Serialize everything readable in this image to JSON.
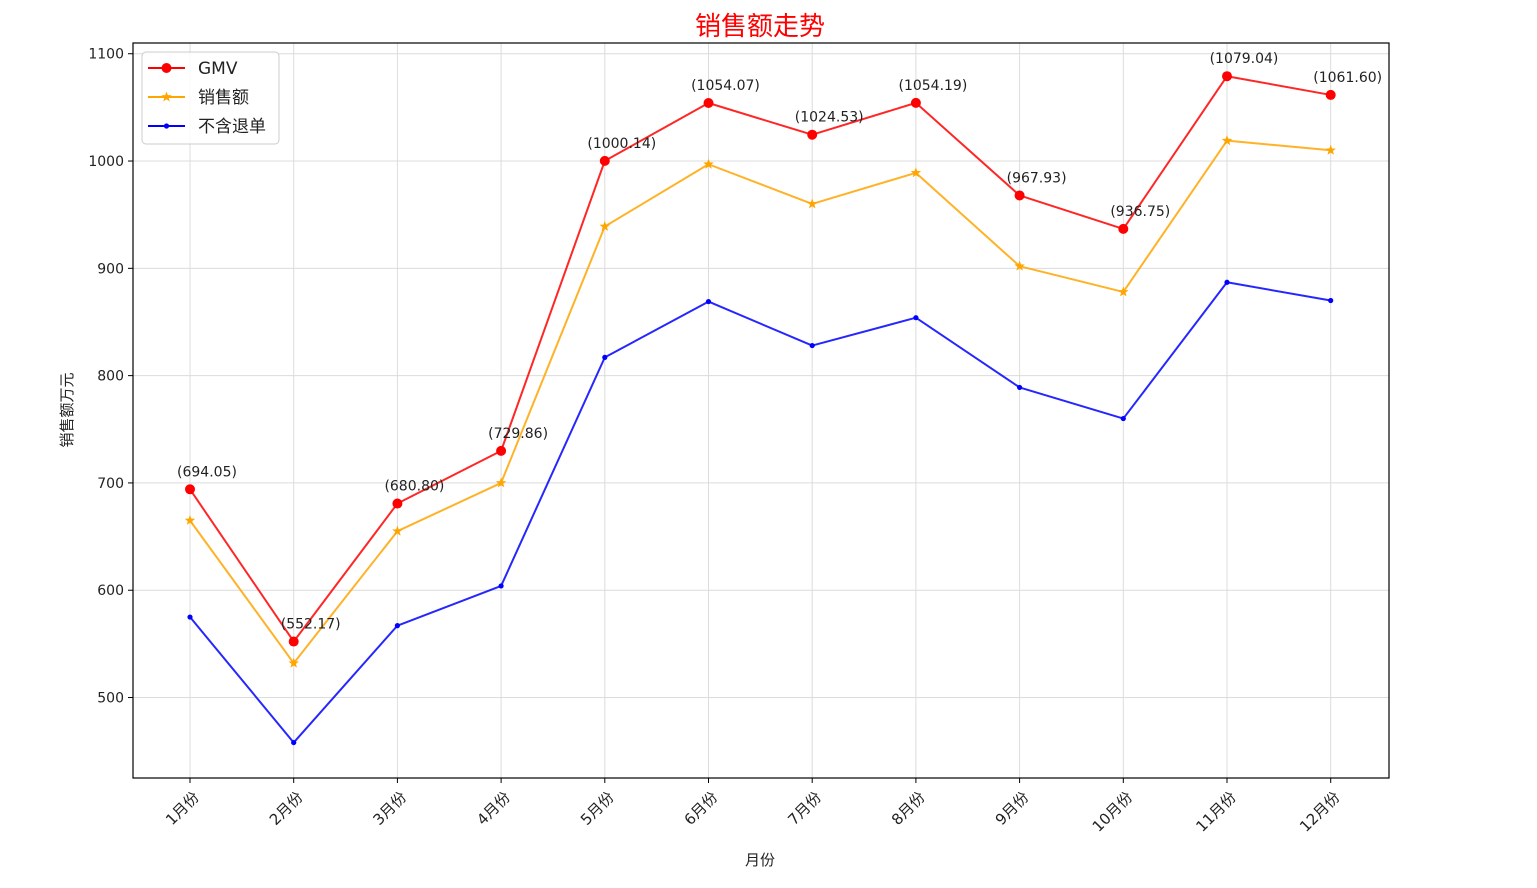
{
  "chart_data": {
    "type": "line",
    "title": "销售额走势",
    "xlabel": "月份",
    "ylabel": "销售额万元",
    "categories": [
      "1月份",
      "2月份",
      "3月份",
      "4月份",
      "5月份",
      "6月份",
      "7月份",
      "8月份",
      "9月份",
      "10月份",
      "11月份",
      "12月份"
    ],
    "ylim": [
      425,
      1110
    ],
    "yticks": [
      500,
      600,
      700,
      800,
      900,
      1000,
      1100
    ],
    "grid": true,
    "legend_position": "top-left",
    "series": [
      {
        "name": "GMV",
        "color": "#ff0000",
        "marker": "circle",
        "values": [
          694.05,
          552.17,
          680.8,
          729.86,
          1000.14,
          1054.07,
          1024.53,
          1054.19,
          967.93,
          936.75,
          1079.04,
          1061.6
        ]
      },
      {
        "name": "销售额",
        "color": "#ffa500",
        "marker": "star",
        "values": [
          665,
          532,
          655,
          700,
          939,
          997,
          960,
          989,
          902,
          878,
          1019,
          1010
        ]
      },
      {
        "name": "不含退单",
        "color": "#0000ff",
        "marker": "point",
        "values": [
          575,
          458,
          567,
          604,
          817,
          869,
          828,
          854,
          789,
          760,
          887,
          870
        ]
      }
    ],
    "annotations": [
      "(694.05)",
      "(552.17)",
      "(680.80)",
      "(729.86)",
      "(1000.14)",
      "(1054.07)",
      "(1024.53)",
      "(1054.19)",
      "(967.93)",
      "(936.75)",
      "(1079.04)",
      "(1061.60)"
    ]
  }
}
